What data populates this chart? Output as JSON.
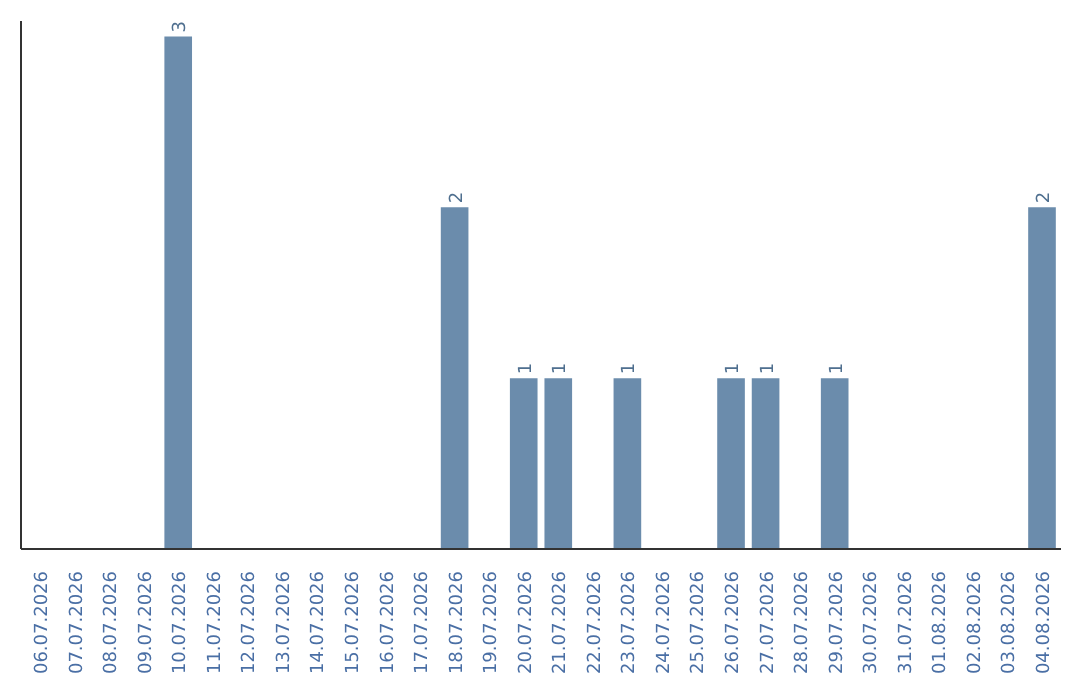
{
  "chart_data": {
    "type": "bar",
    "categories": [
      "06.07.2026",
      "07.07.2026",
      "08.07.2026",
      "09.07.2026",
      "10.07.2026",
      "11.07.2026",
      "12.07.2026",
      "13.07.2026",
      "14.07.2026",
      "15.07.2026",
      "16.07.2026",
      "17.07.2026",
      "18.07.2026",
      "19.07.2026",
      "20.07.2026",
      "21.07.2026",
      "22.07.2026",
      "23.07.2026",
      "24.07.2026",
      "25.07.2026",
      "26.07.2026",
      "27.07.2026",
      "28.07.2026",
      "29.07.2026",
      "30.07.2026",
      "31.07.2026",
      "01.08.2026",
      "02.08.2026",
      "03.08.2026",
      "04.08.2026"
    ],
    "values": [
      0,
      0,
      0,
      0,
      3,
      0,
      0,
      0,
      0,
      0,
      0,
      0,
      2,
      0,
      1,
      1,
      0,
      1,
      0,
      0,
      1,
      1,
      0,
      1,
      0,
      0,
      0,
      0,
      0,
      2
    ],
    "value_labels": [
      null,
      null,
      null,
      null,
      "3",
      null,
      null,
      null,
      null,
      null,
      null,
      null,
      "2",
      null,
      "1",
      "1",
      null,
      "1",
      null,
      null,
      "1",
      "1",
      null,
      "1",
      null,
      null,
      null,
      null,
      null,
      "2"
    ],
    "color": "#6b8cac"
  }
}
